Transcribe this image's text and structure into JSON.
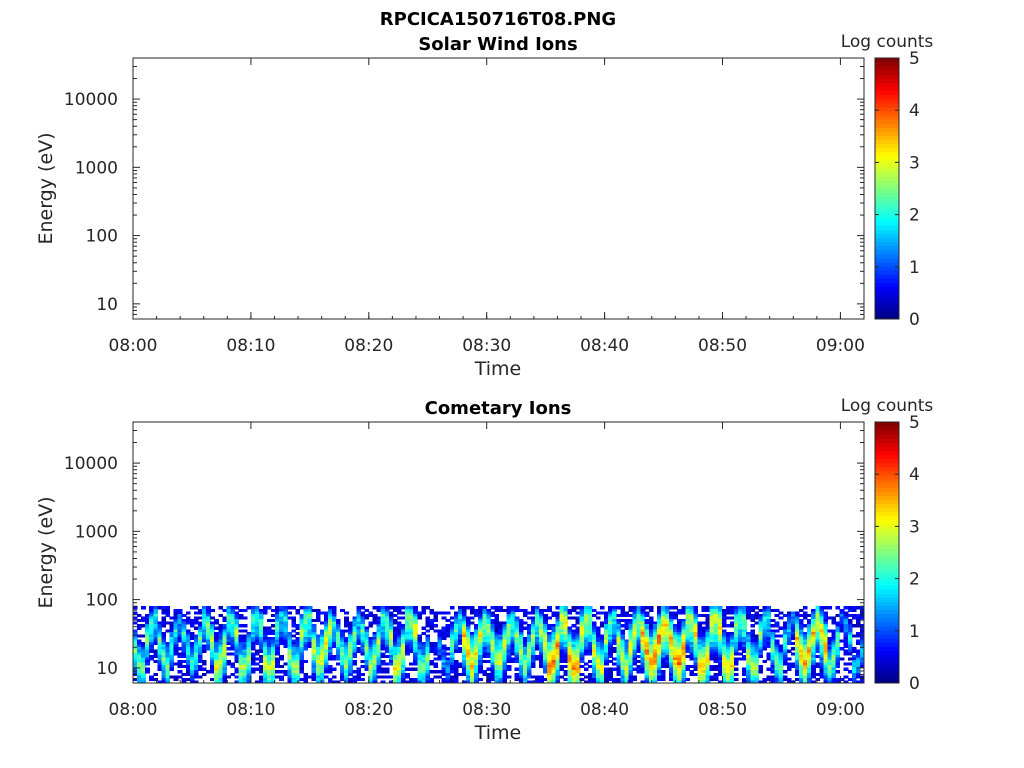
{
  "figure": {
    "title": "RPCICA150716T08.PNG"
  },
  "chart_data": [
    {
      "type": "heatmap",
      "title": "Solar Wind Ions",
      "xlabel": "Time",
      "ylabel": "Energy (eV)",
      "x_ticks": [
        "08:00",
        "08:10",
        "08:20",
        "08:30",
        "08:40",
        "08:50",
        "09:00"
      ],
      "x_range": [
        "08:00",
        "09:02"
      ],
      "y_ticks": [
        "10",
        "100",
        "1000",
        "10000"
      ],
      "y_scale": "log",
      "y_range": [
        6,
        40000
      ],
      "colorbar": {
        "label": "Log counts",
        "ticks": [
          "0",
          "1",
          "2",
          "3",
          "4",
          "5"
        ],
        "range": [
          0,
          5
        ],
        "colormap": "jet"
      },
      "data_present": false
    },
    {
      "type": "heatmap",
      "title": "Cometary Ions",
      "xlabel": "Time",
      "ylabel": "Energy (eV)",
      "x_ticks": [
        "08:00",
        "08:10",
        "08:20",
        "08:30",
        "08:40",
        "08:50",
        "09:00"
      ],
      "x_range": [
        "08:00",
        "09:02"
      ],
      "y_ticks": [
        "10",
        "100",
        "1000",
        "10000"
      ],
      "y_scale": "log",
      "y_range": [
        6,
        40000
      ],
      "colorbar": {
        "label": "Log counts",
        "ticks": [
          "0",
          "1",
          "2",
          "3",
          "4",
          "5"
        ],
        "range": [
          0,
          5
        ],
        "colormap": "jet"
      },
      "data_present": true,
      "data_energy_range_eV": [
        6,
        80
      ],
      "intensity_profile": {
        "time_min": [
          0,
          1,
          2,
          3,
          4,
          5,
          6,
          7,
          8,
          9,
          10,
          11,
          12,
          13,
          14,
          15,
          16,
          17,
          18,
          19,
          20,
          21,
          22,
          23,
          24,
          25,
          26,
          27,
          28,
          29,
          30,
          31,
          32,
          33,
          34,
          35,
          36,
          37,
          38,
          39,
          40,
          41,
          42,
          43,
          44,
          45,
          46,
          47,
          48,
          49,
          50,
          51,
          52,
          53,
          54,
          55,
          56,
          57,
          58,
          59,
          60,
          61
        ],
        "peak_log_counts": [
          2.6,
          2.8,
          2.6,
          2.3,
          2.2,
          2.4,
          2.9,
          3.1,
          3.0,
          2.8,
          2.9,
          3.0,
          2.7,
          2.8,
          3.2,
          3.0,
          3.3,
          2.5,
          2.7,
          2.6,
          2.9,
          3.0,
          3.2,
          3.4,
          2.6,
          1.2,
          1.6,
          2.6,
          3.6,
          3.3,
          3.0,
          3.1,
          2.9,
          2.8,
          3.2,
          3.9,
          3.8,
          3.7,
          3.5,
          3.1,
          2.9,
          3.0,
          3.3,
          3.8,
          4.0,
          3.7,
          3.9,
          3.6,
          3.5,
          3.8,
          3.4,
          3.2,
          2.9,
          2.8,
          2.5,
          2.2,
          3.5,
          3.6,
          3.7,
          2.6,
          2.0,
          1.8
        ]
      }
    }
  ]
}
